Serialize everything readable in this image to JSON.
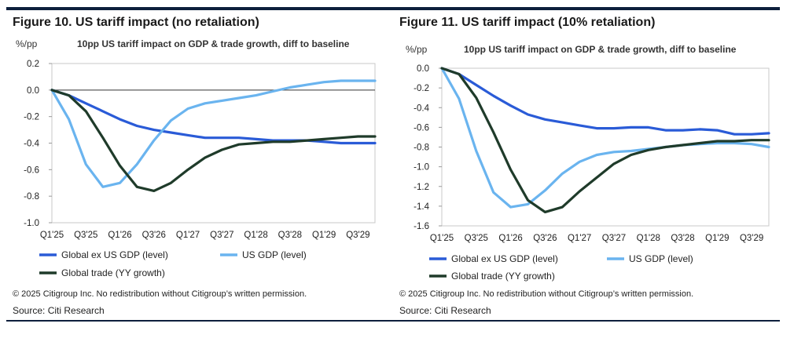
{
  "colors": {
    "global_ex_us": "#2a5bd7",
    "us": "#6ab4ef",
    "trade": "#1f3b2a",
    "rule": "#0d1f3c"
  },
  "chart_data": [
    {
      "type": "line",
      "title": "Figure 10. US tariff impact (no retaliation)",
      "subtitle": "10pp US tariff impact on GDP & trade growth, diff to baseline",
      "ylabel": "%/pp",
      "ylim": [
        -1.0,
        0.2
      ],
      "yticks": [
        "0.2",
        "0.0",
        "-0.2",
        "-0.4",
        "-0.6",
        "-0.8",
        "-1.0"
      ],
      "xticks": [
        "Q1'25",
        "Q3'25",
        "Q1'26",
        "Q3'26",
        "Q1'27",
        "Q3'27",
        "Q1'28",
        "Q3'28",
        "Q1'29",
        "Q3'29"
      ],
      "x": [
        "Q1'25",
        "Q2'25",
        "Q3'25",
        "Q4'25",
        "Q1'26",
        "Q2'26",
        "Q3'26",
        "Q4'26",
        "Q1'27",
        "Q2'27",
        "Q3'27",
        "Q4'27",
        "Q1'28",
        "Q2'28",
        "Q3'28",
        "Q4'28",
        "Q1'29",
        "Q2'29",
        "Q3'29",
        "Q4'29"
      ],
      "series": [
        {
          "name": "Global ex US GDP (level)",
          "values": [
            0,
            -0.04,
            -0.1,
            -0.16,
            -0.22,
            -0.27,
            -0.3,
            -0.32,
            -0.34,
            -0.36,
            -0.36,
            -0.36,
            -0.37,
            -0.38,
            -0.38,
            -0.38,
            -0.39,
            -0.4,
            -0.4,
            -0.4
          ]
        },
        {
          "name": "US GDP (level)",
          "values": [
            0,
            -0.22,
            -0.56,
            -0.73,
            -0.7,
            -0.56,
            -0.38,
            -0.23,
            -0.14,
            -0.1,
            -0.08,
            -0.06,
            -0.04,
            -0.01,
            0.02,
            0.04,
            0.06,
            0.07,
            0.07,
            0.07
          ]
        },
        {
          "name": "Global trade (YY growth)",
          "values": [
            0,
            -0.04,
            -0.16,
            -0.36,
            -0.57,
            -0.73,
            -0.76,
            -0.7,
            -0.6,
            -0.51,
            -0.45,
            -0.41,
            -0.4,
            -0.39,
            -0.39,
            -0.38,
            -0.37,
            -0.36,
            -0.35,
            -0.35
          ]
        }
      ],
      "legend": {
        "position": "bottom"
      },
      "copyright": "© 2025 Citigroup Inc. No redistribution without Citigroup’s written permission.",
      "source": "Source: Citi Research"
    },
    {
      "type": "line",
      "title": "Figure 11. US tariff impact (10% retaliation)",
      "subtitle": "10pp US tariff impact on GDP & trade growth, diff to baseline",
      "ylabel": "%/pp",
      "ylim": [
        -1.6,
        0.0
      ],
      "yticks": [
        "0.0",
        "-0.2",
        "-0.4",
        "-0.6",
        "-0.8",
        "-1.0",
        "-1.2",
        "-1.4",
        "-1.6"
      ],
      "xticks": [
        "Q1'25",
        "Q3'25",
        "Q1'26",
        "Q3'26",
        "Q1'27",
        "Q3'27",
        "Q1'28",
        "Q3'28",
        "Q1'29",
        "Q3'29"
      ],
      "x": [
        "Q1'25",
        "Q2'25",
        "Q3'25",
        "Q4'25",
        "Q1'26",
        "Q2'26",
        "Q3'26",
        "Q4'26",
        "Q1'27",
        "Q2'27",
        "Q3'27",
        "Q4'27",
        "Q1'28",
        "Q2'28",
        "Q3'28",
        "Q4'28",
        "Q1'29",
        "Q2'29",
        "Q3'29",
        "Q4'29"
      ],
      "series": [
        {
          "name": "Global ex US GDP (level)",
          "values": [
            0,
            -0.06,
            -0.17,
            -0.28,
            -0.38,
            -0.47,
            -0.52,
            -0.55,
            -0.58,
            -0.61,
            -0.61,
            -0.6,
            -0.6,
            -0.63,
            -0.63,
            -0.62,
            -0.63,
            -0.67,
            -0.67,
            -0.66
          ]
        },
        {
          "name": "US GDP (level)",
          "values": [
            0,
            -0.31,
            -0.84,
            -1.26,
            -1.41,
            -1.38,
            -1.24,
            -1.07,
            -0.95,
            -0.88,
            -0.85,
            -0.84,
            -0.82,
            -0.8,
            -0.78,
            -0.77,
            -0.76,
            -0.76,
            -0.77,
            -0.8
          ]
        },
        {
          "name": "Global trade (YY growth)",
          "values": [
            0,
            -0.06,
            -0.3,
            -0.65,
            -1.03,
            -1.34,
            -1.46,
            -1.41,
            -1.25,
            -1.11,
            -0.97,
            -0.88,
            -0.83,
            -0.8,
            -0.78,
            -0.76,
            -0.74,
            -0.74,
            -0.73,
            -0.73
          ]
        }
      ],
      "legend": {
        "position": "bottom"
      },
      "copyright": "© 2025 Citigroup Inc. No redistribution without Citigroup’s written permission.",
      "source": "Source: Citi Research"
    }
  ]
}
